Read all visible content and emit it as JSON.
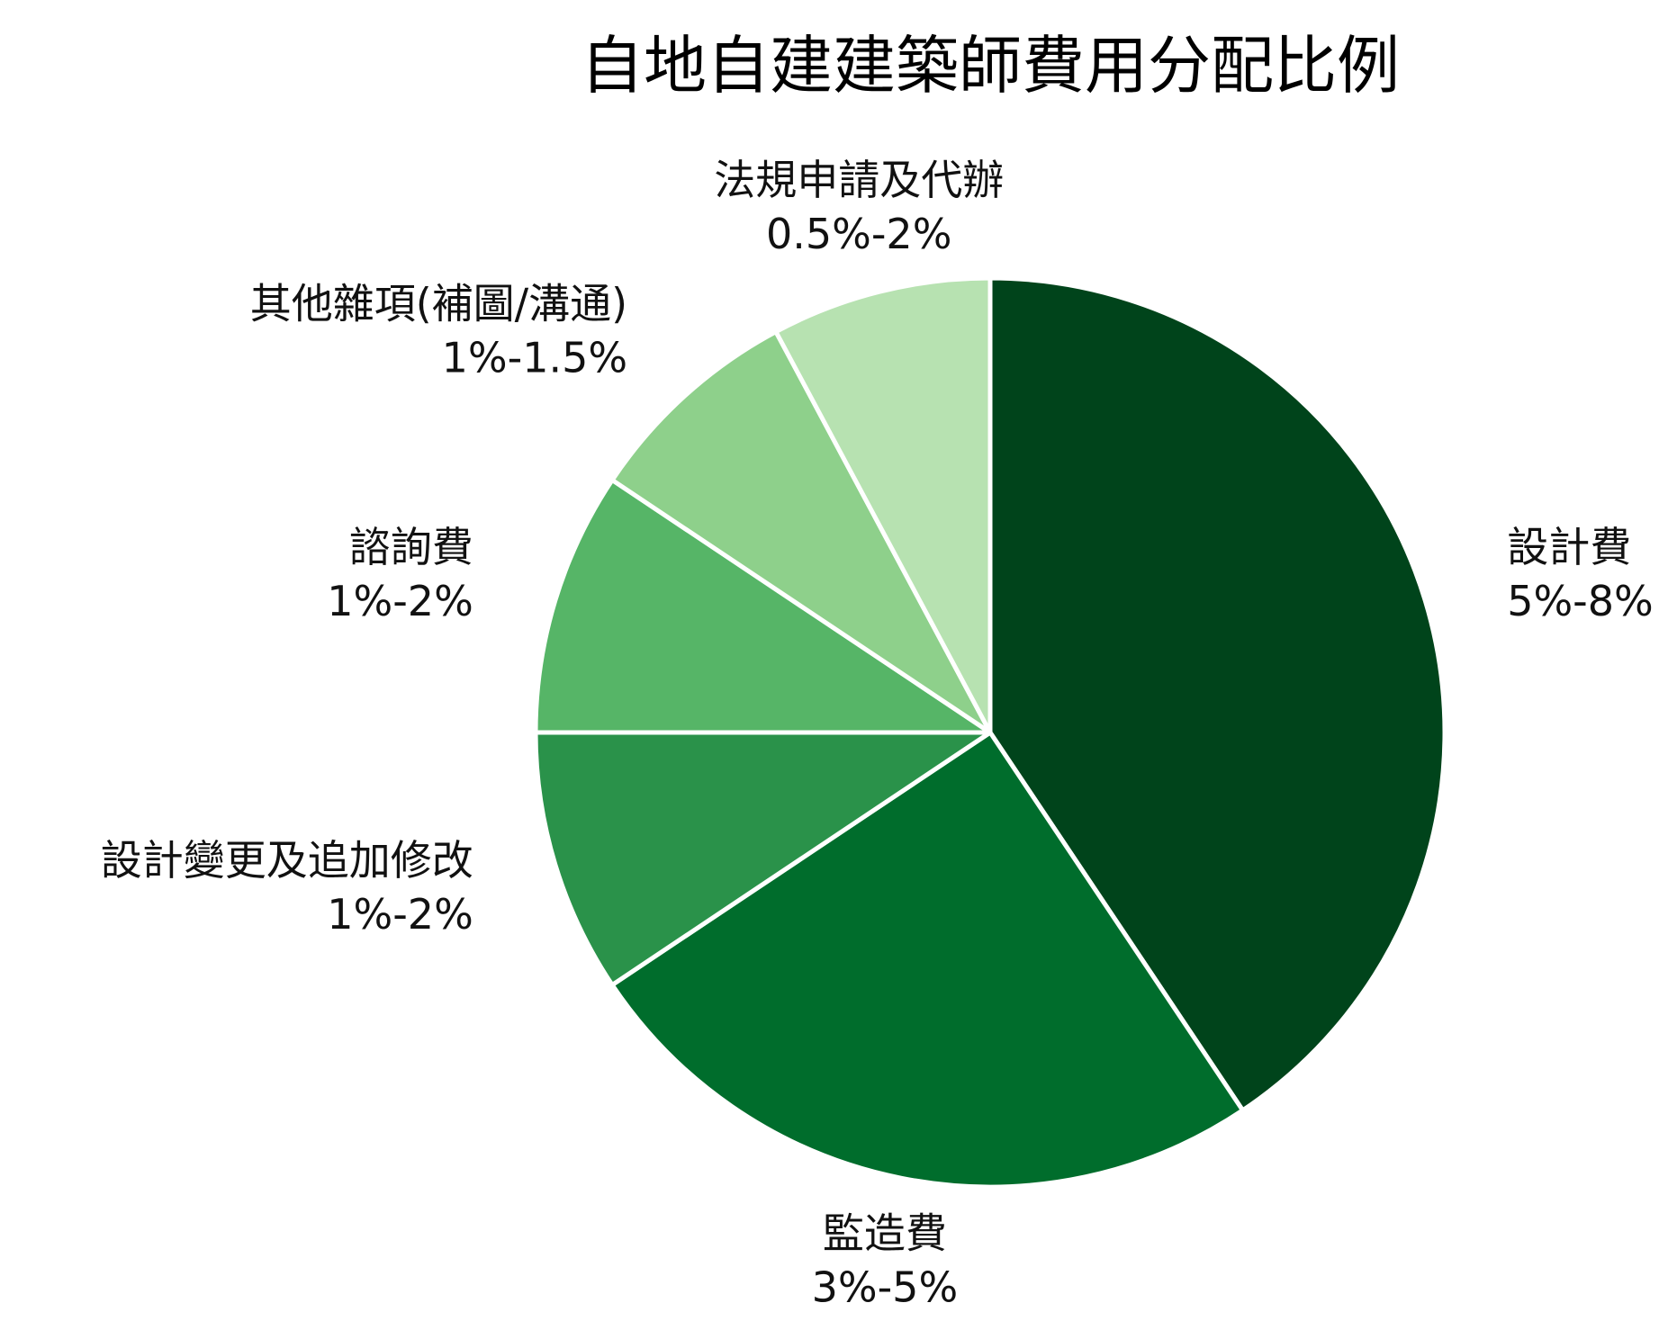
{
  "chart_data": {
    "type": "pie",
    "title": "自地自建建築師費用分配比例",
    "start": "12 o'clock",
    "direction": "clockwise",
    "slices": [
      {
        "name": "設計費",
        "range": "5%-8%",
        "value": 6.5,
        "color": "#00441b"
      },
      {
        "name": "監造費",
        "range": "3%-5%",
        "value": 4.0,
        "color": "#006d2c"
      },
      {
        "name": "設計變更及追加修改",
        "range": "1%-2%",
        "value": 1.5,
        "color": "#2a924a"
      },
      {
        "name": "諮詢費",
        "range": "1%-2%",
        "value": 1.5,
        "color": "#56b567"
      },
      {
        "name": "其他雜項(補圖/溝通)",
        "range": "1%-1.5%",
        "value": 1.25,
        "color": "#8ed08b"
      },
      {
        "name": "法規申請及代辦",
        "range": "0.5%-2%",
        "value": 1.25,
        "color": "#b7e2b1"
      }
    ]
  }
}
